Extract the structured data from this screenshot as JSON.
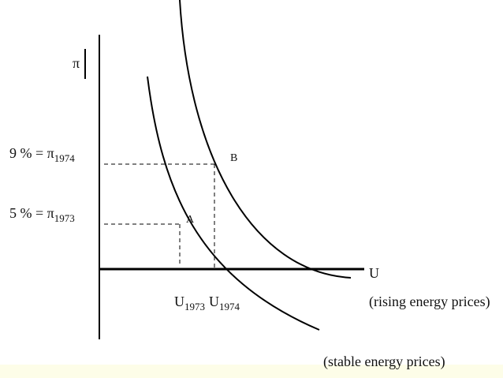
{
  "axes": {
    "y_label": "π",
    "x_label": "U"
  },
  "levels": [
    {
      "text": "9 % = π",
      "sub": "1974"
    },
    {
      "text": "5 % = π",
      "sub": "1973"
    }
  ],
  "points": {
    "a": "A",
    "b": "B"
  },
  "unemployment": [
    {
      "text": "U",
      "sub": "1973"
    },
    {
      "text": "U",
      "sub": "1974"
    }
  ],
  "curves": {
    "rising": "(rising energy prices)",
    "stable": "(stable energy prices)"
  }
}
